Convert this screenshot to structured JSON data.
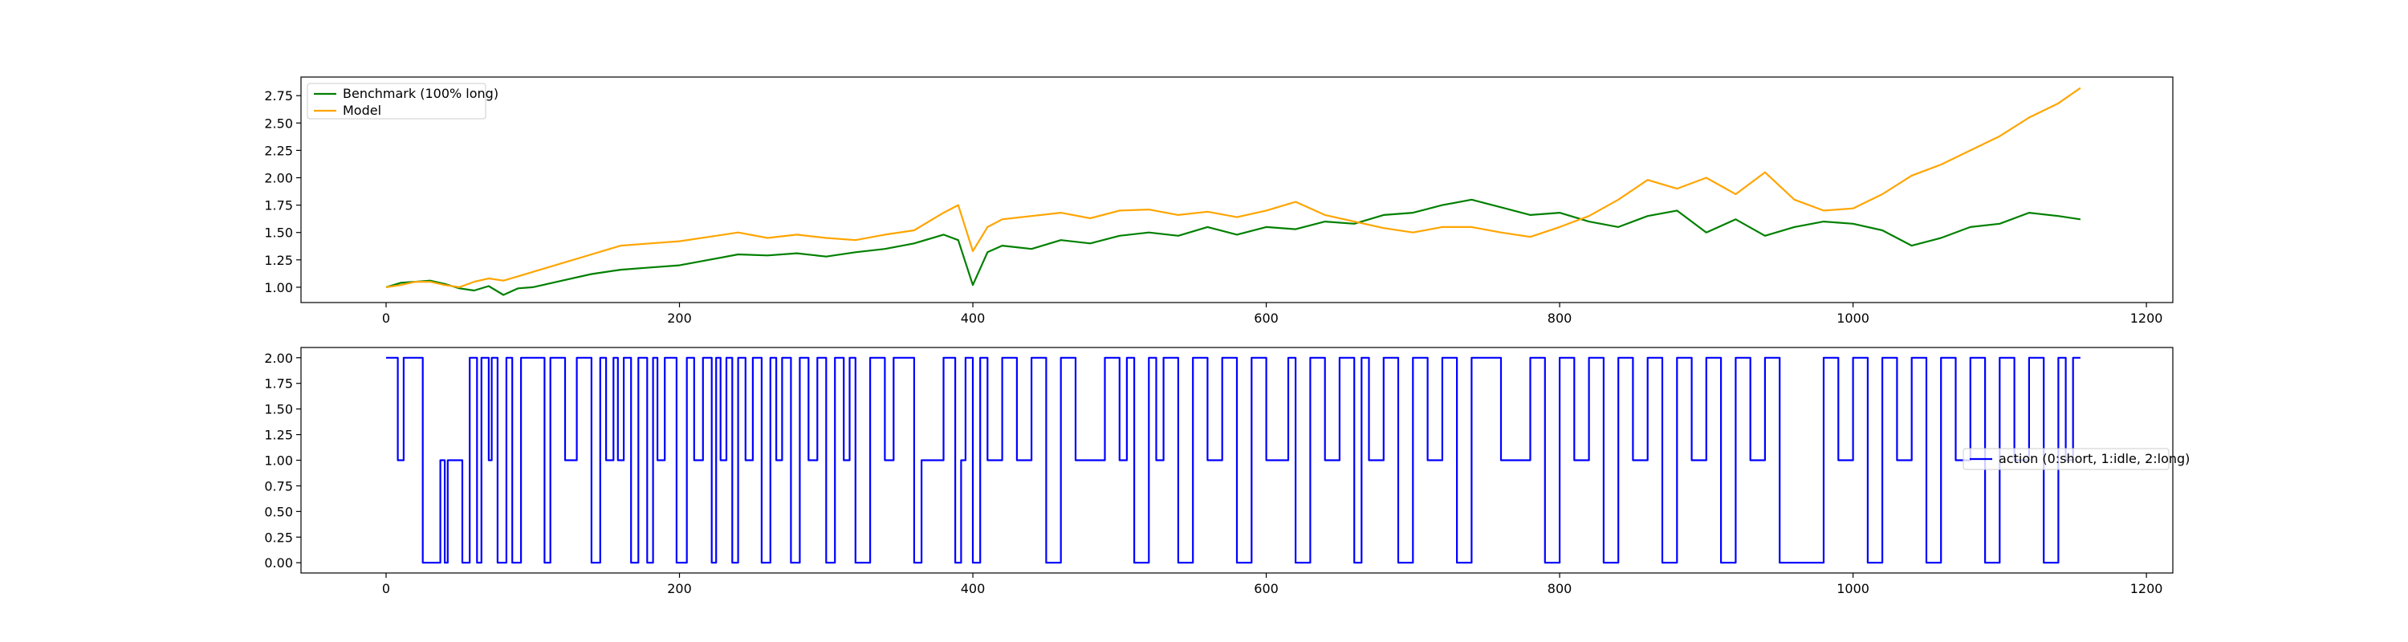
{
  "chart_data": [
    {
      "type": "line",
      "title": "",
      "xlabel": "",
      "ylabel": "",
      "xlim": [
        -58,
        1218
      ],
      "ylim": [
        0.86,
        2.92
      ],
      "xticks": [
        0,
        200,
        400,
        600,
        800,
        1000,
        1200
      ],
      "yticks": [
        1.0,
        1.25,
        1.5,
        1.75,
        2.0,
        2.25,
        2.5,
        2.75
      ],
      "grid": false,
      "legend_position": "upper left",
      "series": [
        {
          "name": "Benchmark (100% long)",
          "color": "#008000",
          "x": [
            0,
            10,
            20,
            30,
            40,
            50,
            60,
            70,
            80,
            90,
            100,
            120,
            140,
            160,
            180,
            200,
            220,
            240,
            260,
            280,
            300,
            320,
            340,
            360,
            380,
            390,
            400,
            410,
            420,
            440,
            460,
            480,
            500,
            520,
            540,
            560,
            580,
            600,
            620,
            640,
            660,
            680,
            700,
            720,
            740,
            760,
            780,
            800,
            820,
            840,
            860,
            880,
            900,
            920,
            940,
            960,
            980,
            1000,
            1020,
            1040,
            1060,
            1080,
            1100,
            1120,
            1140,
            1155
          ],
          "values": [
            1.0,
            1.04,
            1.05,
            1.06,
            1.03,
            0.99,
            0.97,
            1.01,
            0.93,
            0.99,
            1.0,
            1.06,
            1.12,
            1.16,
            1.18,
            1.2,
            1.25,
            1.3,
            1.29,
            1.31,
            1.28,
            1.32,
            1.35,
            1.4,
            1.48,
            1.43,
            1.02,
            1.32,
            1.38,
            1.35,
            1.43,
            1.4,
            1.47,
            1.5,
            1.47,
            1.55,
            1.48,
            1.55,
            1.53,
            1.6,
            1.58,
            1.66,
            1.68,
            1.75,
            1.8,
            1.73,
            1.66,
            1.68,
            1.6,
            1.55,
            1.65,
            1.7,
            1.5,
            1.62,
            1.47,
            1.55,
            1.6,
            1.58,
            1.52,
            1.38,
            1.45,
            1.55,
            1.58,
            1.68,
            1.65,
            1.62
          ]
        },
        {
          "name": "Model",
          "color": "#FFA500",
          "x": [
            0,
            10,
            20,
            30,
            40,
            50,
            60,
            70,
            80,
            90,
            100,
            120,
            140,
            160,
            180,
            200,
            220,
            240,
            260,
            280,
            300,
            320,
            340,
            360,
            380,
            390,
            400,
            410,
            420,
            440,
            460,
            480,
            500,
            520,
            540,
            560,
            580,
            600,
            620,
            640,
            660,
            680,
            700,
            720,
            740,
            760,
            780,
            800,
            820,
            840,
            860,
            880,
            900,
            920,
            940,
            960,
            980,
            1000,
            1020,
            1040,
            1060,
            1080,
            1100,
            1120,
            1140,
            1155
          ],
          "values": [
            1.0,
            1.02,
            1.05,
            1.05,
            1.02,
            1.0,
            1.05,
            1.08,
            1.06,
            1.1,
            1.14,
            1.22,
            1.3,
            1.38,
            1.4,
            1.42,
            1.46,
            1.5,
            1.45,
            1.48,
            1.45,
            1.43,
            1.48,
            1.52,
            1.68,
            1.75,
            1.33,
            1.55,
            1.62,
            1.65,
            1.68,
            1.63,
            1.7,
            1.71,
            1.66,
            1.69,
            1.64,
            1.7,
            1.78,
            1.66,
            1.6,
            1.54,
            1.5,
            1.55,
            1.55,
            1.5,
            1.46,
            1.55,
            1.65,
            1.8,
            1.98,
            1.9,
            2.0,
            1.85,
            2.05,
            1.8,
            1.7,
            1.72,
            1.85,
            2.02,
            2.12,
            2.25,
            2.38,
            2.55,
            2.68,
            2.82
          ]
        }
      ]
    },
    {
      "type": "line",
      "title": "",
      "xlabel": "",
      "ylabel": "",
      "xlim": [
        -58,
        1218
      ],
      "ylim": [
        -0.1,
        2.1
      ],
      "xticks": [
        0,
        200,
        400,
        600,
        800,
        1000,
        1200
      ],
      "yticks": [
        0.0,
        0.25,
        0.5,
        0.75,
        1.0,
        1.25,
        1.5,
        1.75,
        2.0
      ],
      "grid": false,
      "legend_position": "center right",
      "series": [
        {
          "name": "action (0:short, 1:idle, 2:long)",
          "color": "#0000FF",
          "step": true,
          "x": [
            0,
            5,
            8,
            12,
            22,
            25,
            35,
            37,
            40,
            42,
            47,
            52,
            57,
            62,
            65,
            70,
            72,
            76,
            82,
            86,
            92,
            100,
            108,
            112,
            115,
            122,
            130,
            140,
            146,
            150,
            155,
            158,
            162,
            167,
            172,
            178,
            182,
            185,
            190,
            198,
            205,
            210,
            216,
            222,
            225,
            228,
            232,
            236,
            240,
            245,
            250,
            256,
            262,
            266,
            270,
            276,
            282,
            288,
            294,
            300,
            306,
            312,
            316,
            320,
            330,
            340,
            346,
            350,
            360,
            365,
            380,
            385,
            388,
            392,
            395,
            400,
            405,
            410,
            420,
            430,
            440,
            450,
            460,
            470,
            490,
            500,
            505,
            510,
            520,
            525,
            530,
            540,
            550,
            560,
            570,
            580,
            590,
            600,
            615,
            620,
            630,
            640,
            650,
            660,
            665,
            670,
            680,
            690,
            700,
            710,
            720,
            730,
            740,
            760,
            780,
            790,
            800,
            810,
            820,
            830,
            840,
            850,
            860,
            870,
            880,
            890,
            900,
            910,
            920,
            930,
            940,
            950,
            980,
            990,
            1000,
            1010,
            1020,
            1030,
            1040,
            1050,
            1060,
            1070,
            1080,
            1090,
            1100,
            1110,
            1120,
            1130,
            1140,
            1145,
            1150,
            1155
          ],
          "values": [
            2,
            2,
            1,
            2,
            2,
            0,
            0,
            1,
            0,
            1,
            1,
            0,
            2,
            0,
            2,
            1,
            2,
            0,
            2,
            0,
            2,
            2,
            0,
            2,
            2,
            1,
            2,
            0,
            2,
            1,
            2,
            1,
            2,
            0,
            2,
            0,
            2,
            1,
            2,
            0,
            2,
            1,
            2,
            0,
            2,
            1,
            2,
            0,
            2,
            1,
            2,
            0,
            2,
            1,
            2,
            0,
            2,
            1,
            2,
            0,
            2,
            1,
            2,
            0,
            2,
            1,
            2,
            2,
            0,
            1,
            2,
            2,
            0,
            1,
            2,
            0,
            2,
            1,
            2,
            1,
            2,
            0,
            2,
            1,
            2,
            1,
            2,
            0,
            2,
            1,
            2,
            0,
            2,
            1,
            2,
            0,
            2,
            1,
            2,
            0,
            2,
            1,
            2,
            0,
            2,
            1,
            2,
            0,
            2,
            1,
            2,
            0,
            2,
            1,
            2,
            0,
            2,
            1,
            2,
            0,
            2,
            1,
            2,
            0,
            2,
            1,
            2,
            0,
            2,
            1,
            2,
            0,
            2,
            1,
            2,
            0,
            2,
            1,
            2,
            0,
            2,
            1,
            2,
            0,
            2,
            1,
            2,
            0,
            2,
            1,
            2,
            2
          ]
        }
      ]
    }
  ]
}
